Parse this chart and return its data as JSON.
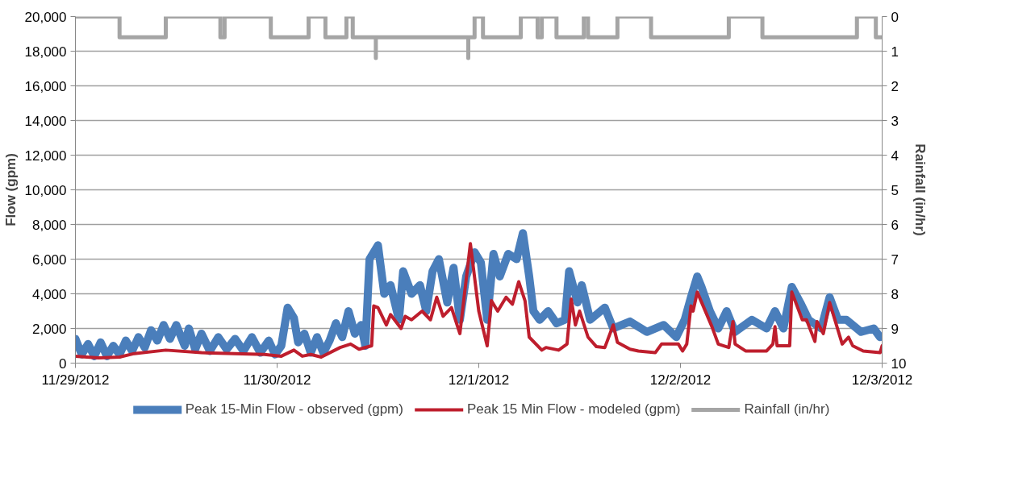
{
  "chart_data": {
    "type": "line",
    "ylabel": "Flow (gpm)",
    "y2label": "Rainfall (in/hr)",
    "xlim": [
      "2012-11-29T00:00",
      "2012-12-03T00:00"
    ],
    "xticks": [
      {
        "value": "2012-11-29T00:00",
        "label": "11/29/2012"
      },
      {
        "value": "2012-11-30T00:00",
        "label": "11/30/2012"
      },
      {
        "value": "2012-12-01T00:00",
        "label": "12/1/2012"
      },
      {
        "value": "2012-12-02T00:00",
        "label": "12/2/2012"
      },
      {
        "value": "2012-12-03T00:00",
        "label": "12/3/2012"
      }
    ],
    "ylim": [
      0,
      20000
    ],
    "yticks": [
      {
        "value": 0,
        "label": "0"
      },
      {
        "value": 2000,
        "label": "2,000"
      },
      {
        "value": 4000,
        "label": "4,000"
      },
      {
        "value": 6000,
        "label": "6,000"
      },
      {
        "value": 8000,
        "label": "8,000"
      },
      {
        "value": 10000,
        "label": "10,000"
      },
      {
        "value": 12000,
        "label": "12,000"
      },
      {
        "value": 14000,
        "label": "14,000"
      },
      {
        "value": 16000,
        "label": "16,000"
      },
      {
        "value": 18000,
        "label": "18,000"
      },
      {
        "value": 20000,
        "label": "20,000"
      }
    ],
    "y2lim": [
      10,
      0
    ],
    "y2ticks": [
      0,
      1,
      2,
      3,
      4,
      5,
      6,
      7,
      8,
      9,
      10
    ],
    "grid": "y",
    "legend": "bottom",
    "line_style": "solid",
    "marker": "none",
    "series": [
      {
        "name": "Peak 15-Min Flow - observed (gpm)",
        "color": "#4a7ebb",
        "x": [
          "2012-11-29T00:00",
          "2012-11-29T00:45",
          "2012-11-29T01:30",
          "2012-11-29T02:15",
          "2012-11-29T03:00",
          "2012-11-29T03:45",
          "2012-11-29T04:30",
          "2012-11-29T05:15",
          "2012-11-29T06:00",
          "2012-11-29T06:45",
          "2012-11-29T07:30",
          "2012-11-29T08:15",
          "2012-11-29T09:00",
          "2012-11-29T09:45",
          "2012-11-29T10:30",
          "2012-11-29T11:15",
          "2012-11-29T12:00",
          "2012-11-29T13:00",
          "2012-11-29T13:30",
          "2012-11-29T14:15",
          "2012-11-29T15:00",
          "2012-11-29T16:00",
          "2012-11-29T17:00",
          "2012-11-29T18:00",
          "2012-11-29T19:00",
          "2012-11-29T20:00",
          "2012-11-29T21:00",
          "2012-11-29T22:00",
          "2012-11-29T23:00",
          "2012-11-29T23:45",
          "2012-11-30T00:30",
          "2012-11-30T01:15",
          "2012-11-30T02:00",
          "2012-11-30T02:30",
          "2012-11-30T03:15",
          "2012-11-30T04:00",
          "2012-11-30T04:45",
          "2012-11-30T05:30",
          "2012-11-30T06:15",
          "2012-11-30T07:00",
          "2012-11-30T07:45",
          "2012-11-30T08:30",
          "2012-11-30T09:15",
          "2012-11-30T10:00",
          "2012-11-30T10:30",
          "2012-11-30T11:00",
          "2012-11-30T12:00",
          "2012-11-30T12:45",
          "2012-11-30T13:30",
          "2012-11-30T14:30",
          "2012-11-30T15:00",
          "2012-11-30T16:00",
          "2012-11-30T17:00",
          "2012-11-30T17:45",
          "2012-11-30T18:30",
          "2012-11-30T19:15",
          "2012-11-30T20:15",
          "2012-11-30T21:00",
          "2012-11-30T21:45",
          "2012-11-30T22:30",
          "2012-11-30T23:30",
          "2012-12-01T00:15",
          "2012-12-01T01:00",
          "2012-12-01T01:45",
          "2012-12-01T02:30",
          "2012-12-01T03:30",
          "2012-12-01T04:30",
          "2012-12-01T05:15",
          "2012-12-01T06:00",
          "2012-12-01T06:30",
          "2012-12-01T07:15",
          "2012-12-01T08:15",
          "2012-12-01T09:15",
          "2012-12-01T10:15",
          "2012-12-01T10:45",
          "2012-12-01T11:45",
          "2012-12-01T12:15",
          "2012-12-01T13:15",
          "2012-12-01T15:00",
          "2012-12-01T16:00",
          "2012-12-01T18:00",
          "2012-12-01T20:00",
          "2012-12-01T22:00",
          "2012-12-01T23:30",
          "2012-12-02T00:30",
          "2012-12-02T01:15",
          "2012-12-02T02:00",
          "2012-12-02T02:30",
          "2012-12-02T03:30",
          "2012-12-02T04:30",
          "2012-12-02T05:30",
          "2012-12-02T06:30",
          "2012-12-02T08:30",
          "2012-12-02T10:15",
          "2012-12-02T11:15",
          "2012-12-02T12:15",
          "2012-12-02T13:15",
          "2012-12-02T14:15",
          "2012-12-02T15:15",
          "2012-12-02T16:45",
          "2012-12-02T17:45",
          "2012-12-02T18:45",
          "2012-12-02T19:45",
          "2012-12-02T21:30",
          "2012-12-02T23:00",
          "2012-12-02T23:45"
        ],
        "values": [
          1400,
          500,
          1100,
          400,
          1200,
          400,
          1000,
          500,
          1300,
          700,
          1500,
          900,
          1900,
          1300,
          2200,
          1400,
          2200,
          1000,
          2000,
          800,
          1700,
          700,
          1500,
          800,
          1400,
          700,
          1500,
          600,
          1300,
          500,
          1000,
          3200,
          2600,
          1200,
          1700,
          600,
          1500,
          600,
          1300,
          2300,
          1500,
          3000,
          1700,
          2200,
          1000,
          6000,
          6800,
          4000,
          4500,
          2500,
          5300,
          4000,
          4500,
          3000,
          5300,
          6000,
          3500,
          5500,
          2500,
          5000,
          6400,
          5800,
          2500,
          6300,
          5000,
          6300,
          6000,
          7500,
          5000,
          3000,
          2500,
          3000,
          2300,
          2500,
          5300,
          3500,
          4500,
          2500,
          3200,
          2000,
          2400,
          1800,
          2200,
          1500,
          2500,
          3800,
          5000,
          4400,
          3000,
          2000,
          3000,
          1800,
          2500,
          2000,
          3000,
          2000,
          4400,
          3500,
          2500,
          2000,
          3800,
          2500,
          2500,
          1800,
          2000,
          1500
        ]
      },
      {
        "name": "Peak 15 Min Flow - modeled (gpm)",
        "color": "#be1e2d",
        "x": [
          "2012-11-29T00:00",
          "2012-11-29T02:45",
          "2012-11-29T05:15",
          "2012-11-29T07:00",
          "2012-11-29T10:45",
          "2012-11-29T15:00",
          "2012-11-29T22:30",
          "2012-11-30T00:30",
          "2012-11-30T02:00",
          "2012-11-30T03:00",
          "2012-11-30T04:00",
          "2012-11-30T05:15",
          "2012-11-30T07:30",
          "2012-11-30T08:45",
          "2012-11-30T09:45",
          "2012-11-30T11:15",
          "2012-11-30T11:30",
          "2012-11-30T12:00",
          "2012-11-30T13:00",
          "2012-11-30T13:30",
          "2012-11-30T14:45",
          "2012-11-30T15:15",
          "2012-11-30T16:00",
          "2012-11-30T17:15",
          "2012-11-30T18:15",
          "2012-11-30T19:00",
          "2012-11-30T19:45",
          "2012-11-30T20:45",
          "2012-11-30T21:45",
          "2012-11-30T23:00",
          "2012-12-01T00:00",
          "2012-12-01T01:00",
          "2012-12-01T01:30",
          "2012-12-01T02:15",
          "2012-12-01T03:15",
          "2012-12-01T04:00",
          "2012-12-01T04:45",
          "2012-12-01T05:30",
          "2012-12-01T06:00",
          "2012-12-01T07:30",
          "2012-12-01T08:00",
          "2012-12-01T09:30",
          "2012-12-01T10:30",
          "2012-12-01T11:00",
          "2012-12-01T11:30",
          "2012-12-01T12:00",
          "2012-12-01T13:00",
          "2012-12-01T14:00",
          "2012-12-01T15:00",
          "2012-12-01T16:00",
          "2012-12-01T16:30",
          "2012-12-01T18:00",
          "2012-12-01T19:00",
          "2012-12-01T21:00",
          "2012-12-01T21:45",
          "2012-12-01T23:45",
          "2012-12-02T00:15",
          "2012-12-02T00:45",
          "2012-12-02T01:15",
          "2012-12-02T01:30",
          "2012-12-02T02:00",
          "2012-12-02T03:45",
          "2012-12-02T04:30",
          "2012-12-02T05:45",
          "2012-12-02T06:15",
          "2012-12-02T06:30",
          "2012-12-02T07:45",
          "2012-12-02T10:15",
          "2012-12-02T11:00",
          "2012-12-02T11:15",
          "2012-12-02T11:30",
          "2012-12-02T13:00",
          "2012-12-02T13:15",
          "2012-12-02T14:30",
          "2012-12-02T15:00",
          "2012-12-02T16:00",
          "2012-12-02T16:15",
          "2012-12-02T17:00",
          "2012-12-02T17:45",
          "2012-12-02T19:15",
          "2012-12-02T20:00",
          "2012-12-02T20:30",
          "2012-12-02T21:45",
          "2012-12-02T23:45",
          "2012-12-03T00:00"
        ],
        "values": [
          400,
          300,
          350,
          550,
          750,
          600,
          500,
          400,
          750,
          400,
          500,
          350,
          900,
          1100,
          800,
          1000,
          3300,
          3200,
          2200,
          2800,
          2000,
          2700,
          2500,
          3000,
          2500,
          3800,
          2700,
          3200,
          1700,
          6900,
          3000,
          1000,
          3600,
          3000,
          3800,
          3400,
          4700,
          3600,
          1500,
          750,
          900,
          750,
          1100,
          3700,
          2200,
          3000,
          1500,
          950,
          900,
          2200,
          1200,
          800,
          700,
          600,
          1100,
          1100,
          700,
          1100,
          3300,
          3000,
          4100,
          2100,
          1100,
          900,
          2400,
          1100,
          700,
          700,
          1100,
          2100,
          1000,
          1000,
          4100,
          2500,
          2500,
          1250,
          2400,
          1700,
          3500,
          1100,
          1500,
          1000,
          700,
          600,
          1000
        ]
      },
      {
        "name": "Rainfall (in/hr)",
        "color": "#a5a5a5",
        "axis": "y2",
        "x": [
          "2012-11-29T00:00",
          "2012-11-29T05:15",
          "2012-11-29T05:15",
          "2012-11-29T10:45",
          "2012-11-29T10:45",
          "2012-11-29T17:15",
          "2012-11-29T17:15",
          "2012-11-29T17:45",
          "2012-11-29T17:45",
          "2012-11-29T23:15",
          "2012-11-29T23:15",
          "2012-11-30T03:45",
          "2012-11-30T03:45",
          "2012-11-30T05:45",
          "2012-11-30T05:45",
          "2012-11-30T08:15",
          "2012-11-30T08:15",
          "2012-11-30T09:00",
          "2012-11-30T09:00",
          "2012-11-30T11:45",
          "2012-11-30T11:45",
          "2012-11-30T11:45",
          "2012-11-30T22:45",
          "2012-11-30T22:45",
          "2012-11-30T22:45",
          "2012-11-30T23:30",
          "2012-11-30T23:30",
          "2012-12-01T00:30",
          "2012-12-01T00:30",
          "2012-12-01T05:00",
          "2012-12-01T05:00",
          "2012-12-01T07:00",
          "2012-12-01T07:00",
          "2012-12-01T07:30",
          "2012-12-01T07:30",
          "2012-12-01T09:15",
          "2012-12-01T09:15",
          "2012-12-01T12:30",
          "2012-12-01T12:30",
          "2012-12-01T13:00",
          "2012-12-01T13:00",
          "2012-12-01T16:30",
          "2012-12-01T16:30",
          "2012-12-01T20:30",
          "2012-12-01T20:30",
          "2012-12-02T05:45",
          "2012-12-02T05:45",
          "2012-12-02T09:45",
          "2012-12-02T09:45",
          "2012-12-02T21:00",
          "2012-12-02T21:00",
          "2012-12-02T23:15",
          "2012-12-02T23:15",
          "2012-12-03T00:00"
        ],
        "values": [
          0,
          0,
          0.6,
          0.6,
          0,
          0,
          0.6,
          0.6,
          0,
          0,
          0.6,
          0.6,
          0,
          0,
          0.6,
          0.6,
          0,
          0,
          0.6,
          0.6,
          1.2,
          0.6,
          0.6,
          1.2,
          0.6,
          0.6,
          0,
          0,
          0.6,
          0.6,
          0,
          0,
          0.6,
          0.6,
          0,
          0,
          0.6,
          0.6,
          0,
          0,
          0.6,
          0.6,
          0,
          0,
          0.6,
          0.6,
          0,
          0,
          0.6,
          0.6,
          0,
          0,
          0.6,
          0.6
        ]
      }
    ]
  }
}
